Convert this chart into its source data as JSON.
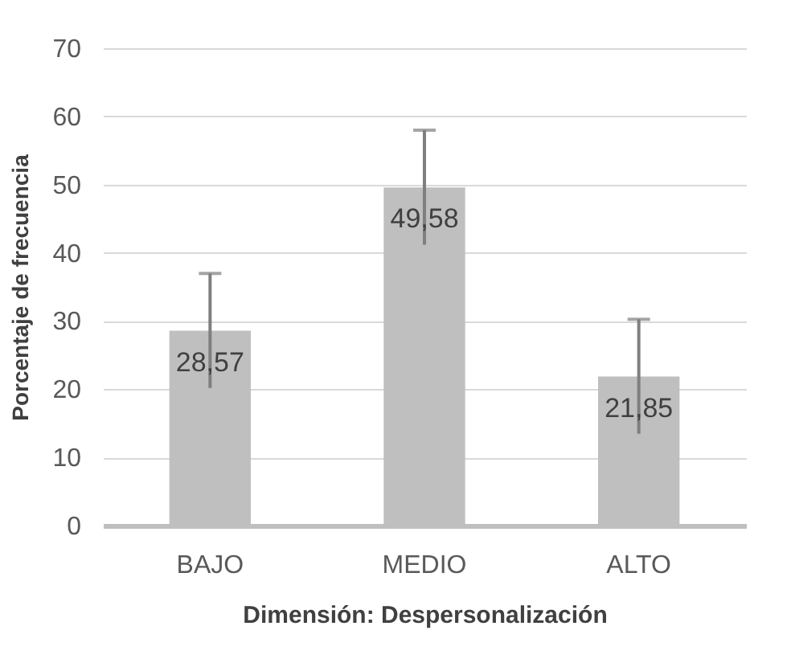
{
  "chart_data": {
    "type": "bar",
    "categories": [
      "BAJO",
      "MEDIO",
      "ALTO"
    ],
    "values": [
      28.57,
      49.58,
      21.85
    ],
    "errors": [
      8.4,
      8.4,
      8.4
    ],
    "value_labels": [
      "28,57",
      "49,58",
      "21,85"
    ],
    "color": "#bfbfbf",
    "xlabel": "Dimensión: Despersonalización",
    "ylabel": "Porcentaje de frecuencia",
    "ylim": [
      0,
      70
    ],
    "yticks": [
      0,
      10,
      20,
      30,
      40,
      50,
      60,
      70
    ],
    "grid": "y"
  }
}
